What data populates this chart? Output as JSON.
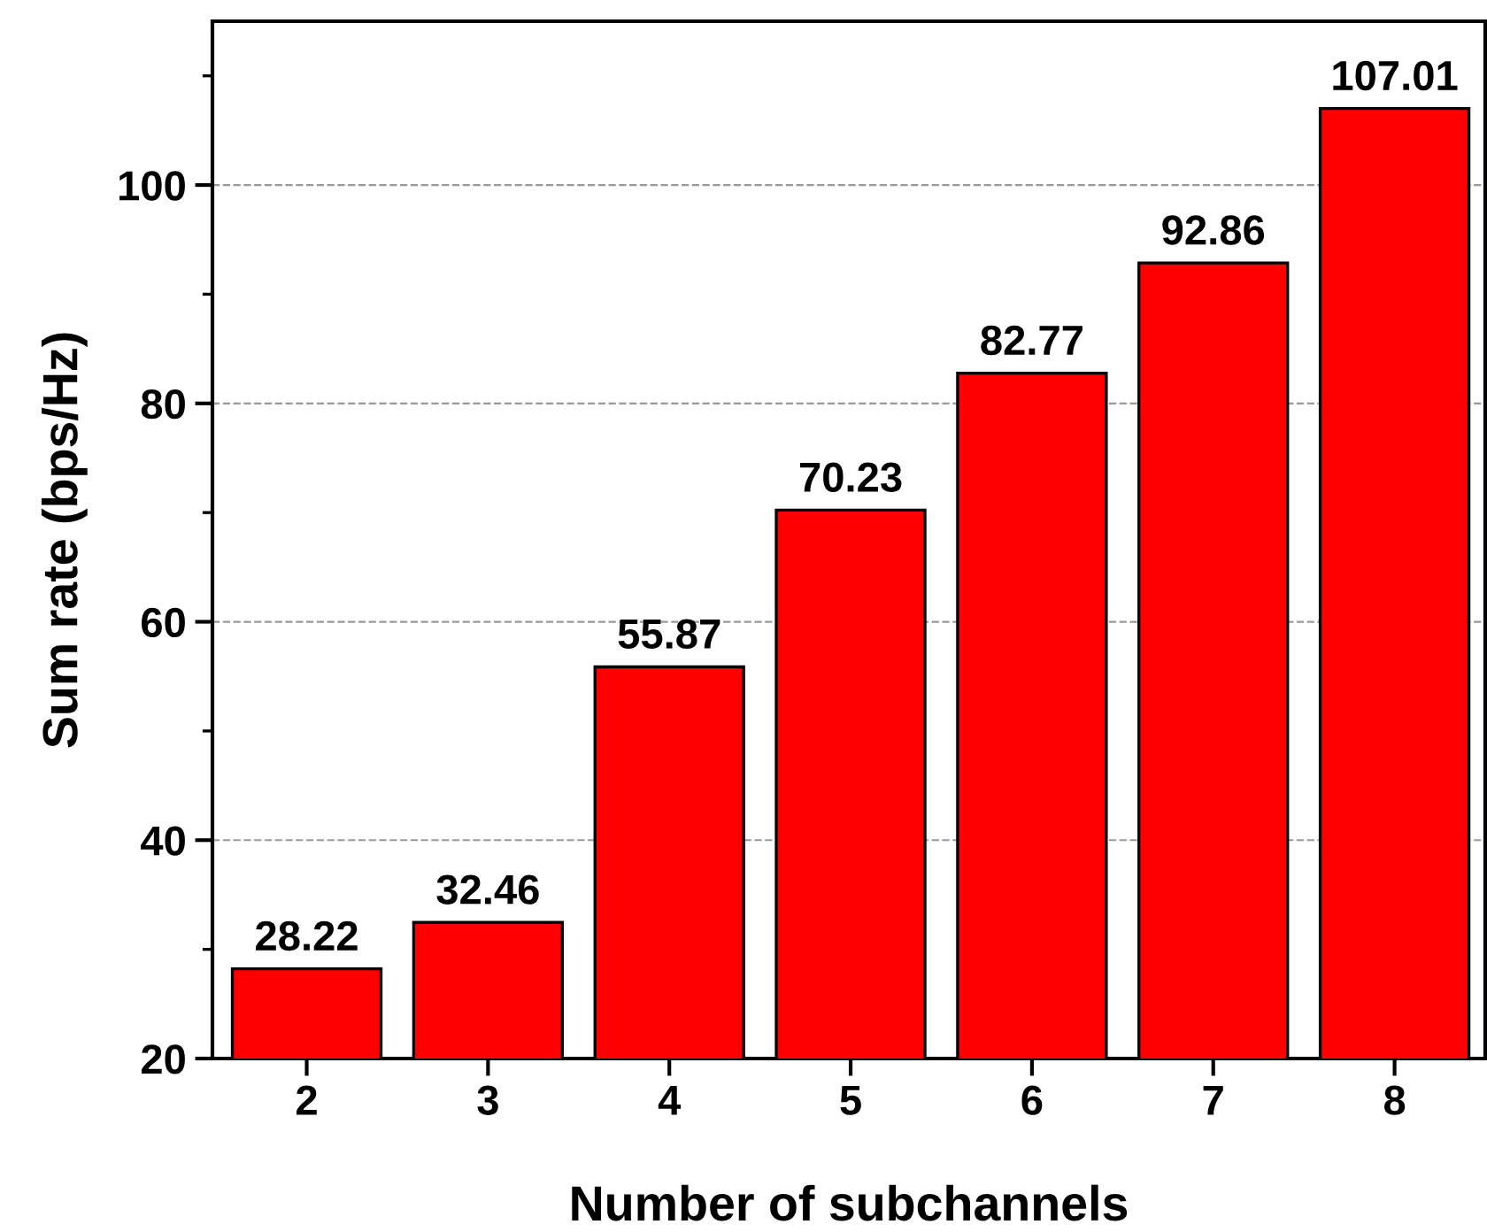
{
  "chart_data": {
    "type": "bar",
    "xlabel": "Number of subchannels",
    "ylabel": "Sum rate (bps/Hz)",
    "categories": [
      "2",
      "3",
      "4",
      "5",
      "6",
      "7",
      "8"
    ],
    "values": [
      28.22,
      32.46,
      55.87,
      70.23,
      82.77,
      92.86,
      107.01
    ],
    "color": "#ff0000",
    "ylim": [
      20,
      115
    ],
    "yticks": [
      20,
      40,
      60,
      80,
      100
    ],
    "grid": "y",
    "data_labels": true,
    "legend": false
  }
}
